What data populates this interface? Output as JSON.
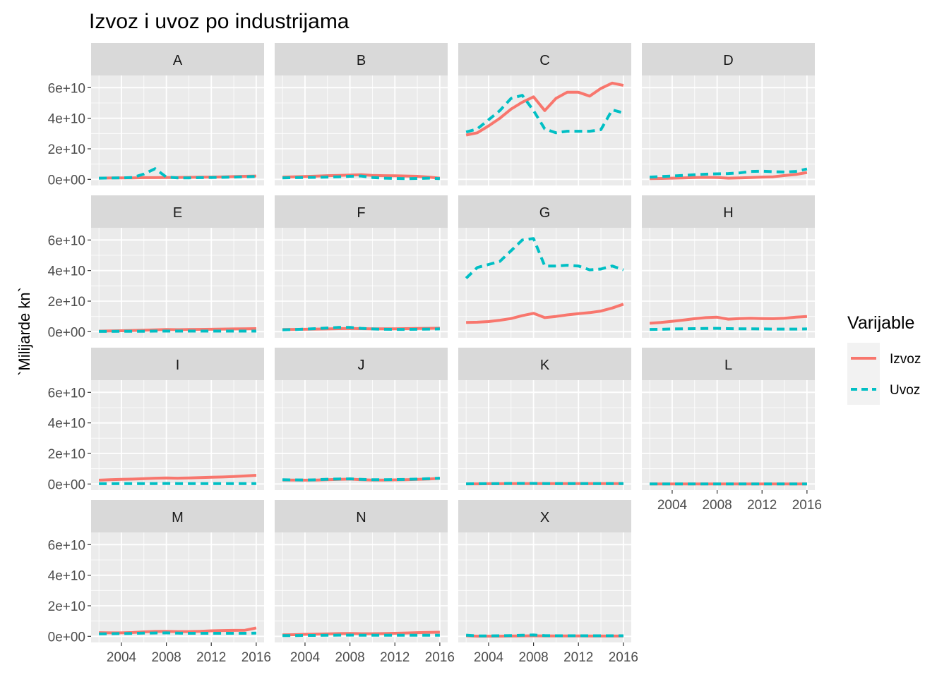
{
  "chart_data": {
    "type": "line",
    "title": "Izvoz i uvoz po industrijama",
    "xlabel": "",
    "ylabel": "`Milijarde kn`",
    "x": [
      2002,
      2003,
      2004,
      2005,
      2006,
      2007,
      2008,
      2009,
      2010,
      2011,
      2012,
      2013,
      2014,
      2015,
      2016
    ],
    "xlim": [
      2001.3,
      2016.7
    ],
    "ylim": [
      -4000000000.0,
      68000000000.0
    ],
    "x_ticks": [
      2004,
      2008,
      2012,
      2016
    ],
    "x_tick_labels": [
      "2004",
      "2008",
      "2012",
      "2016"
    ],
    "y_ticks": [
      0,
      20000000000,
      40000000000,
      60000000000
    ],
    "y_tick_labels": [
      "0e+00",
      "2e+10",
      "4e+10",
      "6e+10"
    ],
    "grid": true,
    "facets": [
      {
        "label": "A",
        "series": [
          {
            "name": "Izvoz",
            "values": [
              800000000.0,
              900000000.0,
              1000000000.0,
              1000000000.0,
              1100000000.0,
              1100000000.0,
              1200000000.0,
              1200000000.0,
              1300000000.0,
              1400000000.0,
              1500000000.0,
              1600000000.0,
              1800000000.0,
              2000000000.0,
              2200000000.0
            ]
          },
          {
            "name": "Uvoz",
            "values": [
              800000000.0,
              900000000.0,
              1000000000.0,
              1200000000.0,
              3500000000.0,
              7000000000.0,
              1500000000.0,
              1000000000.0,
              1000000000.0,
              1100000000.0,
              1200000000.0,
              1300000000.0,
              1500000000.0,
              1700000000.0,
              1900000000.0
            ]
          }
        ]
      },
      {
        "label": "B",
        "series": [
          {
            "name": "Izvoz",
            "values": [
              1500000000.0,
              1700000000.0,
              1900000000.0,
              2100000000.0,
              2400000000.0,
              2600000000.0,
              2800000000.0,
              3000000000.0,
              2600000000.0,
              2400000000.0,
              2300000000.0,
              2200000000.0,
              2000000000.0,
              1500000000.0,
              800000000.0
            ]
          },
          {
            "name": "Uvoz",
            "values": [
              1000000000.0,
              1100000000.0,
              1200000000.0,
              1300000000.0,
              1500000000.0,
              1700000000.0,
              2000000000.0,
              2200000000.0,
              1200000000.0,
              800000000.0,
              600000000.0,
              500000000.0,
              600000000.0,
              800000000.0,
              500000000.0
            ]
          }
        ]
      },
      {
        "label": "C",
        "series": [
          {
            "name": "Izvoz",
            "values": [
              29000000000.0,
              30500000000.0,
              35000000000.0,
              40000000000.0,
              46000000000.0,
              50500000000.0,
              54000000000.0,
              45000000000.0,
              53000000000.0,
              57000000000.0,
              57000000000.0,
              54500000000.0,
              59500000000.0,
              63000000000.0,
              61500000000.0
            ]
          },
          {
            "name": "Uvoz",
            "values": [
              31000000000.0,
              33000000000.0,
              39000000000.0,
              45000000000.0,
              53000000000.0,
              55000000000.0,
              45000000000.0,
              33000000000.0,
              30500000000.0,
              31500000000.0,
              31500000000.0,
              31500000000.0,
              32500000000.0,
              45500000000.0,
              43500000000.0
            ]
          }
        ]
      },
      {
        "label": "D",
        "series": [
          {
            "name": "Izvoz",
            "values": [
              500000000.0,
              600000000.0,
              800000000.0,
              1000000000.0,
              1200000000.0,
              1300000000.0,
              1200000000.0,
              800000000.0,
              1000000000.0,
              1200000000.0,
              1500000000.0,
              1700000000.0,
              2500000000.0,
              3200000000.0,
              4500000000.0
            ]
          },
          {
            "name": "Uvoz",
            "values": [
              1500000000.0,
              1800000000.0,
              2200000000.0,
              2600000000.0,
              3000000000.0,
              3400000000.0,
              3600000000.0,
              3800000000.0,
              4200000000.0,
              5200000000.0,
              5300000000.0,
              5000000000.0,
              4800000000.0,
              5200000000.0,
              6800000000.0
            ]
          }
        ]
      },
      {
        "label": "E",
        "series": [
          {
            "name": "Izvoz",
            "values": [
              400000000.0,
              500000000.0,
              600000000.0,
              800000000.0,
              1000000000.0,
              1200000000.0,
              1400000000.0,
              1300000000.0,
              1400000000.0,
              1500000000.0,
              1600000000.0,
              1700000000.0,
              1800000000.0,
              1900000000.0,
              2000000000.0
            ]
          },
          {
            "name": "Uvoz",
            "values": [
              200000000.0,
              200000000.0,
              300000000.0,
              300000000.0,
              300000000.0,
              400000000.0,
              400000000.0,
              400000000.0,
              400000000.0,
              400000000.0,
              400000000.0,
              400000000.0,
              400000000.0,
              400000000.0,
              400000000.0
            ]
          }
        ]
      },
      {
        "label": "F",
        "series": [
          {
            "name": "Izvoz",
            "values": [
              1400000000.0,
              1500000000.0,
              1600000000.0,
              1700000000.0,
              1800000000.0,
              2000000000.0,
              2100000000.0,
              2000000000.0,
              1900000000.0,
              1900000000.0,
              1900000000.0,
              2000000000.0,
              2100000000.0,
              2200000000.0,
              2300000000.0
            ]
          },
          {
            "name": "Uvoz",
            "values": [
              1200000000.0,
              1400000000.0,
              1700000000.0,
              2000000000.0,
              2400000000.0,
              2800000000.0,
              2800000000.0,
              2200000000.0,
              1800000000.0,
              1600000000.0,
              1500000000.0,
              1500000000.0,
              1600000000.0,
              1700000000.0,
              1800000000.0
            ]
          }
        ]
      },
      {
        "label": "G",
        "series": [
          {
            "name": "Izvoz",
            "values": [
              6000000000.0,
              6200000000.0,
              6600000000.0,
              7500000000.0,
              8600000000.0,
              10500000000.0,
              12000000000.0,
              9200000000.0,
              10000000000.0,
              11000000000.0,
              11800000000.0,
              12500000000.0,
              13500000000.0,
              15500000000.0,
              18000000000.0
            ]
          },
          {
            "name": "Uvoz",
            "values": [
              35000000000.0,
              42000000000.0,
              44000000000.0,
              46000000000.0,
              53000000000.0,
              60000000000.0,
              61000000000.0,
              43000000000.0,
              43000000000.0,
              43500000000.0,
              43000000000.0,
              40500000000.0,
              41000000000.0,
              43000000000.0,
              40500000000.0
            ]
          }
        ]
      },
      {
        "label": "H",
        "series": [
          {
            "name": "Izvoz",
            "values": [
              5500000000.0,
              6000000000.0,
              6800000000.0,
              7600000000.0,
              8500000000.0,
              9200000000.0,
              9500000000.0,
              8200000000.0,
              8600000000.0,
              8800000000.0,
              8600000000.0,
              8500000000.0,
              8800000000.0,
              9500000000.0,
              10000000000.0
            ]
          },
          {
            "name": "Uvoz",
            "values": [
              1500000000.0,
              1600000000.0,
              1800000000.0,
              1900000000.0,
              2000000000.0,
              2100000000.0,
              2200000000.0,
              2000000000.0,
              1900000000.0,
              1900000000.0,
              1800000000.0,
              1700000000.0,
              1700000000.0,
              1700000000.0,
              1800000000.0
            ]
          }
        ]
      },
      {
        "label": "I",
        "series": [
          {
            "name": "Izvoz",
            "values": [
              2500000000.0,
              2800000000.0,
              3000000000.0,
              3200000000.0,
              3500000000.0,
              3800000000.0,
              4000000000.0,
              3800000000.0,
              4000000000.0,
              4200000000.0,
              4400000000.0,
              4600000000.0,
              4900000000.0,
              5300000000.0,
              5700000000.0
            ]
          },
          {
            "name": "Uvoz",
            "values": [
              200000000.0,
              200000000.0,
              300000000.0,
              300000000.0,
              300000000.0,
              300000000.0,
              400000000.0,
              300000000.0,
              300000000.0,
              300000000.0,
              300000000.0,
              300000000.0,
              300000000.0,
              300000000.0,
              300000000.0
            ]
          }
        ]
      },
      {
        "label": "J",
        "series": [
          {
            "name": "Izvoz",
            "values": [
              2600000000.0,
              2600000000.0,
              2500000000.0,
              2600000000.0,
              2800000000.0,
              3000000000.0,
              3200000000.0,
              2800000000.0,
              2600000000.0,
              2600000000.0,
              2700000000.0,
              2800000000.0,
              3000000000.0,
              3300000000.0,
              3700000000.0
            ]
          },
          {
            "name": "Uvoz",
            "values": [
              2800000000.0,
              2700000000.0,
              2600000000.0,
              2800000000.0,
              3100000000.0,
              3300000000.0,
              3400000000.0,
              3000000000.0,
              2800000000.0,
              2800000000.0,
              2900000000.0,
              3000000000.0,
              3200000000.0,
              3500000000.0,
              3800000000.0
            ]
          }
        ]
      },
      {
        "label": "K",
        "series": [
          {
            "name": "Izvoz",
            "values": [
              100000000.0,
              100000000.0,
              200000000.0,
              200000000.0,
              300000000.0,
              300000000.0,
              300000000.0,
              300000000.0,
              300000000.0,
              300000000.0,
              300000000.0,
              300000000.0,
              300000000.0,
              300000000.0,
              300000000.0
            ]
          },
          {
            "name": "Uvoz",
            "values": [
              100000000.0,
              200000000.0,
              200000000.0,
              300000000.0,
              400000000.0,
              400000000.0,
              400000000.0,
              300000000.0,
              300000000.0,
              300000000.0,
              300000000.0,
              300000000.0,
              300000000.0,
              300000000.0,
              300000000.0
            ]
          }
        ]
      },
      {
        "label": "L",
        "series": [
          {
            "name": "Izvoz",
            "values": [
              50000000.0,
              50000000.0,
              50000000.0,
              50000000.0,
              50000000.0,
              50000000.0,
              50000000.0,
              50000000.0,
              50000000.0,
              50000000.0,
              50000000.0,
              50000000.0,
              50000000.0,
              50000000.0,
              50000000.0
            ]
          },
          {
            "name": "Uvoz",
            "values": [
              50000000.0,
              50000000.0,
              50000000.0,
              50000000.0,
              50000000.0,
              50000000.0,
              50000000.0,
              50000000.0,
              50000000.0,
              50000000.0,
              50000000.0,
              50000000.0,
              50000000.0,
              50000000.0,
              50000000.0
            ]
          }
        ]
      },
      {
        "label": "M",
        "series": [
          {
            "name": "Izvoz",
            "values": [
              2400000000.0,
              2300000000.0,
              2300000000.0,
              2500000000.0,
              2900000000.0,
              3200000000.0,
              3300000000.0,
              3100000000.0,
              3100000000.0,
              3300000000.0,
              3600000000.0,
              3800000000.0,
              3900000000.0,
              4000000000.0,
              5500000000.0
            ]
          },
          {
            "name": "Uvoz",
            "values": [
              1600000000.0,
              1700000000.0,
              1800000000.0,
              1900000000.0,
              2100000000.0,
              2200000000.0,
              2300000000.0,
              2100000000.0,
              2000000000.0,
              2000000000.0,
              2000000000.0,
              2000000000.0,
              2000000000.0,
              2000000000.0,
              2100000000.0
            ]
          }
        ]
      },
      {
        "label": "N",
        "series": [
          {
            "name": "Izvoz",
            "values": [
              1000000000.0,
              1100000000.0,
              1300000000.0,
              1400000000.0,
              1600000000.0,
              1800000000.0,
              1900000000.0,
              1700000000.0,
              1700000000.0,
              1800000000.0,
              2000000000.0,
              2200000000.0,
              2400000000.0,
              2600000000.0,
              2700000000.0
            ]
          },
          {
            "name": "Uvoz",
            "values": [
              500000000.0,
              500000000.0,
              600000000.0,
              600000000.0,
              700000000.0,
              800000000.0,
              800000000.0,
              700000000.0,
              700000000.0,
              700000000.0,
              700000000.0,
              700000000.0,
              700000000.0,
              700000000.0,
              700000000.0
            ]
          }
        ]
      },
      {
        "label": "X",
        "series": [
          {
            "name": "Izvoz",
            "values": [
              400000000.0,
              100000000.0,
              100000000.0,
              100000000.0,
              200000000.0,
              300000000.0,
              400000000.0,
              300000000.0,
              300000000.0,
              300000000.0,
              300000000.0,
              200000000.0,
              200000000.0,
              200000000.0,
              200000000.0
            ]
          },
          {
            "name": "Uvoz",
            "values": [
              800000000.0,
              300000000.0,
              300000000.0,
              400000000.0,
              500000000.0,
              700000000.0,
              900000000.0,
              500000000.0,
              400000000.0,
              400000000.0,
              400000000.0,
              400000000.0,
              400000000.0,
              400000000.0,
              400000000.0
            ]
          }
        ]
      }
    ],
    "legend": {
      "title": "Varijable",
      "position": "right",
      "items": [
        {
          "label": "Izvoz",
          "color": "#F8766D",
          "linetype": "solid"
        },
        {
          "label": "Uvoz",
          "color": "#00BFC4",
          "linetype": "dashed"
        }
      ]
    },
    "panel_background": "#EBEBEB",
    "strip_background": "#D9D9D9",
    "gridline_color": "#FFFFFF"
  }
}
